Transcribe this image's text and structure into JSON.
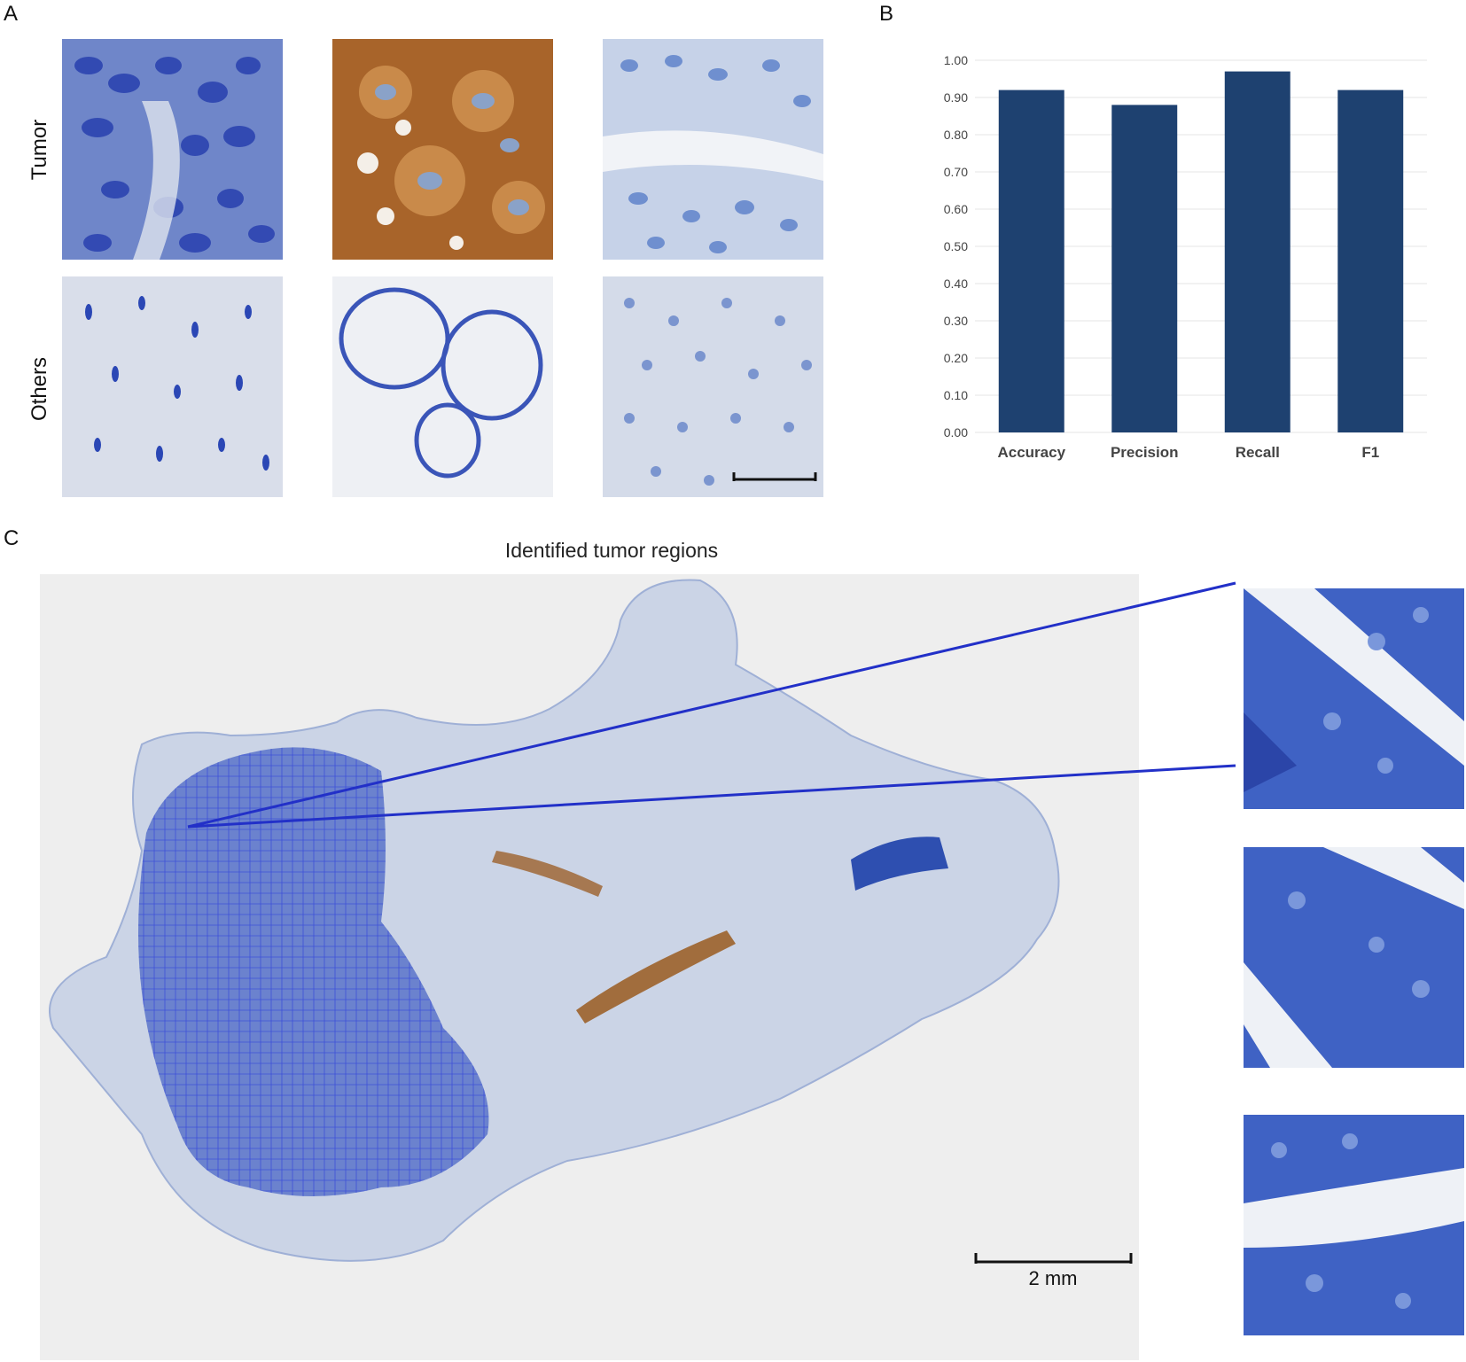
{
  "panel_a": {
    "letter": "A",
    "row_labels": [
      "Tumor",
      "Others"
    ]
  },
  "panel_b": {
    "letter": "B"
  },
  "panel_c": {
    "letter": "C",
    "title": "Identified tumor regions",
    "scale_bar_label": "2 mm"
  },
  "colors": {
    "bar": "#1e4170",
    "tile_blue": "#4a66b8",
    "dab_brown": "#9a5a1f",
    "box_outline": "#3a4bd8"
  },
  "chart_data": {
    "type": "bar",
    "categories": [
      "Accuracy",
      "Precision",
      "Recall",
      "F1"
    ],
    "values": [
      0.92,
      0.88,
      0.97,
      0.92
    ],
    "title": "",
    "xlabel": "",
    "ylabel": "",
    "ylim": [
      0,
      1.0
    ],
    "yticks": [
      "0.00",
      "0.10",
      "0.20",
      "0.30",
      "0.40",
      "0.50",
      "0.60",
      "0.70",
      "0.80",
      "0.90",
      "1.00"
    ],
    "grid": true,
    "legend": "none"
  }
}
